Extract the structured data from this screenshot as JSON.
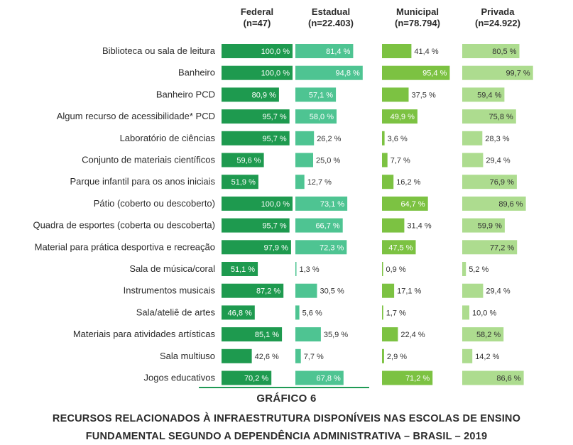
{
  "chart_data": {
    "type": "bar",
    "orientation": "horizontal",
    "panels": "one panel per series, side by side",
    "categories": [
      "Biblioteca ou sala de leitura",
      "Banheiro",
      "Banheiro PCD",
      "Algum recurso de acessibilidade* PCD",
      "Laboratório de ciências",
      "Conjunto de materiais científicos",
      "Parque infantil para os anos iniciais",
      "Pátio (coberto ou descoberto)",
      "Quadra de esportes (coberta ou descoberta)",
      "Material para prática desportiva e recreação",
      "Sala de música/coral",
      "Instrumentos musicais",
      "Sala/ateliê de artes",
      "Materiais para atividades artísticas",
      "Sala multiuso",
      "Jogos educativos"
    ],
    "series": [
      {
        "name": "Federal",
        "n_label": "(n=47)",
        "color": "#1e9a4f",
        "label_color_inside": "#ffffff",
        "values": [
          100.0,
          100.0,
          80.9,
          95.7,
          95.7,
          59.6,
          51.9,
          100.0,
          95.7,
          97.9,
          51.1,
          87.2,
          46.8,
          85.1,
          42.6,
          70.2
        ],
        "labels": [
          "100,0 %",
          "100,0 %",
          "80,9 %",
          "95,7 %",
          "95,7 %",
          "59,6 %",
          "51,9 %",
          "100,0 %",
          "95,7 %",
          "97,9 %",
          "51,1 %",
          "87,2 %",
          "46,8 %",
          "85,1 %",
          "42,6 %",
          "70,2 %"
        ]
      },
      {
        "name": "Estadual",
        "n_label": "(n=22.403)",
        "color": "#4ec492",
        "label_color_inside": "#ffffff",
        "values": [
          81.4,
          94.8,
          57.1,
          58.0,
          26.2,
          25.0,
          12.7,
          73.1,
          66.7,
          72.3,
          1.3,
          30.5,
          5.6,
          35.9,
          7.7,
          67.8
        ],
        "labels": [
          "81,4 %",
          "94,8 %",
          "57,1 %",
          "58,0 %",
          "26,2 %",
          "25,0 %",
          "12,7 %",
          "73,1 %",
          "66,7 %",
          "72,3 %",
          "1,3 %",
          "30,5 %",
          "5,6 %",
          "35,9 %",
          "7,7 %",
          "67,8 %"
        ]
      },
      {
        "name": "Municipal",
        "n_label": "(n=78.794)",
        "color": "#7cc242",
        "label_color_inside": "#ffffff",
        "values": [
          41.4,
          95.4,
          37.5,
          49.9,
          3.6,
          7.7,
          16.2,
          64.7,
          31.4,
          47.5,
          0.9,
          17.1,
          1.7,
          22.4,
          2.9,
          71.2
        ],
        "labels": [
          "41,4 %",
          "95,4 %",
          "37,5 %",
          "49,9 %",
          "3,6 %",
          "7,7 %",
          "16,2 %",
          "64,7 %",
          "31,4 %",
          "47,5 %",
          "0,9 %",
          "17,1 %",
          "1,7 %",
          "22,4 %",
          "2,9 %",
          "71,2 %"
        ]
      },
      {
        "name": "Privada",
        "n_label": "(n=24.922)",
        "color": "#addc8f",
        "label_color_inside": "#333333",
        "values": [
          80.5,
          99.7,
          59.4,
          75.8,
          28.3,
          29.4,
          76.9,
          89.6,
          59.9,
          77.2,
          5.2,
          29.4,
          10.0,
          58.2,
          14.2,
          86.6
        ],
        "labels": [
          "80,5 %",
          "99,7 %",
          "59,4 %",
          "75,8 %",
          "28,3 %",
          "29,4 %",
          "76,9 %",
          "89,6 %",
          "59,9 %",
          "77,2 %",
          "5,2 %",
          "29,4 %",
          "10,0 %",
          "58,2 %",
          "14,2 %",
          "86,6 %"
        ]
      }
    ],
    "xlim": [
      0,
      100
    ],
    "grid": false,
    "legend": "none (series names shown as column headers)",
    "title": "GRÁFICO 6",
    "subtitle": "RECURSOS RELACIONADOS À INFRAESTRUTURA DISPONÍVEIS NAS ESCOLAS DE ENSINO FUNDAMENTAL SEGUNDO A DEPENDÊNCIA ADMINISTRATIVA – BRASIL – 2019",
    "subtitle_lines": [
      "RECURSOS RELACIONADOS À INFRAESTRUTURA DISPONÍVEIS NAS ESCOLAS DE ENSINO",
      "FUNDAMENTAL SEGUNDO A DEPENDÊNCIA ADMINISTRATIVA – BRASIL – 2019"
    ]
  }
}
